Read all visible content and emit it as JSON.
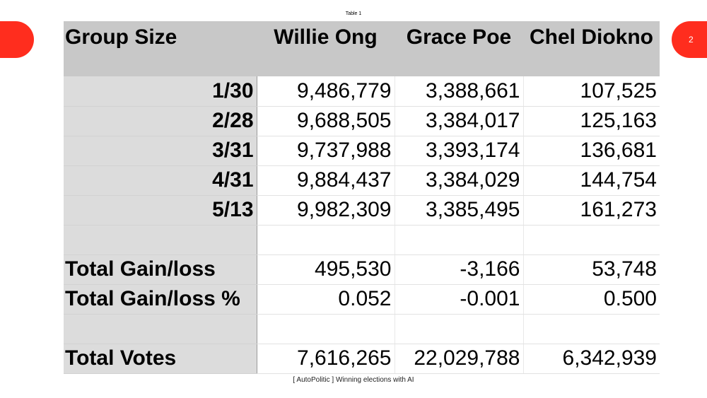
{
  "slide": {
    "page_number": "2",
    "caption": "Table 1",
    "footer": "[ AutoPolitic ]  Winning elections with AI",
    "accent_color": "#ff2d1e"
  },
  "table": {
    "headers": [
      "Group Size",
      "Willie Ong",
      "Grace Poe",
      "Chel Diokno"
    ],
    "rows": [
      {
        "label": "1/30",
        "values": [
          "9,486,779",
          "3,388,661",
          "107,525"
        ]
      },
      {
        "label": "2/28",
        "values": [
          "9,688,505",
          "3,384,017",
          "125,163"
        ]
      },
      {
        "label": "3/31",
        "values": [
          "9,737,988",
          "3,393,174",
          "136,681"
        ]
      },
      {
        "label": "4/31",
        "values": [
          "9,884,437",
          "3,384,029",
          "144,754"
        ]
      },
      {
        "label": "5/13",
        "values": [
          "9,982,309",
          "3,385,495",
          "161,273"
        ]
      },
      {
        "label": "",
        "values": [
          "",
          "",
          ""
        ]
      },
      {
        "label": "Total Gain/loss",
        "values": [
          "495,530",
          "-3,166",
          "53,748"
        ]
      },
      {
        "label": "Total Gain/loss %",
        "values": [
          "0.052",
          "-0.001",
          "0.500"
        ]
      },
      {
        "label": "",
        "values": [
          "",
          "",
          ""
        ]
      },
      {
        "label": "Total Votes",
        "values": [
          "7,616,265",
          "22,029,788",
          "6,342,939"
        ]
      }
    ]
  }
}
